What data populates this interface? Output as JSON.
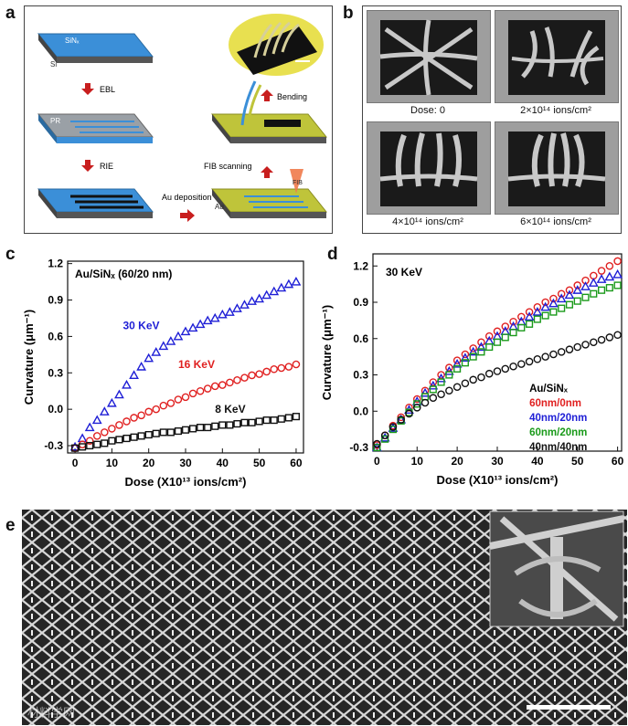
{
  "panels": {
    "a": {
      "letter": "a",
      "labels": {
        "sinx": "SiNₓ",
        "si": "Si",
        "pr": "PR",
        "au": "Au",
        "fib": "FIB",
        "ebl": "EBL",
        "rie": "RIE",
        "au_deposition": "Au deposition",
        "fib_scanning": "FIB scanning",
        "bending": "Bending"
      }
    },
    "b": {
      "letter": "b",
      "tiles": [
        {
          "label": "Dose: 0"
        },
        {
          "label": "2×10¹⁴ ions/cm²"
        },
        {
          "label": "4×10¹⁴ ions/cm²"
        },
        {
          "label": "6×10¹⁴ ions/cm²"
        }
      ]
    },
    "e": {
      "letter": "e",
      "watermark": "材料学网"
    }
  },
  "chart_data": [
    {
      "panel": "c",
      "type": "scatter",
      "title": "Au/SiNₓ (60/20 nm)",
      "xlabel": "Dose (X10¹³ ions/cm²)",
      "ylabel": "Curvature (μm⁻¹)",
      "xlim": [
        -2,
        62
      ],
      "ylim": [
        -0.36,
        1.22
      ],
      "xticks": [
        "0",
        "10",
        "20",
        "30",
        "40",
        "50",
        "60"
      ],
      "yticks": [
        "-0.3",
        "0.0",
        "0.3",
        "0.6",
        "0.9",
        "1.2"
      ],
      "xtick_values": [
        0,
        10,
        20,
        30,
        40,
        50,
        60
      ],
      "ytick_values": [
        -0.3,
        0,
        0.3,
        0.6,
        0.9,
        1.2
      ],
      "series": [
        {
          "name": "30 KeV",
          "color": "#1f1fd6",
          "marker": "triangle",
          "x": [
            0,
            2,
            4,
            6,
            8,
            10,
            12,
            14,
            16,
            18,
            20,
            22,
            24,
            26,
            28,
            30,
            32,
            34,
            36,
            38,
            40,
            42,
            44,
            46,
            48,
            50,
            52,
            54,
            56,
            58,
            60
          ],
          "y": [
            -0.31,
            -0.24,
            -0.15,
            -0.09,
            -0.02,
            0.05,
            0.12,
            0.2,
            0.28,
            0.35,
            0.42,
            0.47,
            0.52,
            0.56,
            0.6,
            0.64,
            0.67,
            0.7,
            0.73,
            0.75,
            0.78,
            0.8,
            0.83,
            0.86,
            0.89,
            0.91,
            0.94,
            0.97,
            1.0,
            1.03,
            1.05
          ]
        },
        {
          "name": "16 KeV",
          "color": "#e02020",
          "marker": "circle",
          "x": [
            0,
            2,
            4,
            6,
            8,
            10,
            12,
            14,
            16,
            18,
            20,
            22,
            24,
            26,
            28,
            30,
            32,
            34,
            36,
            38,
            40,
            42,
            44,
            46,
            48,
            50,
            52,
            54,
            56,
            58,
            60
          ],
          "y": [
            -0.32,
            -0.29,
            -0.26,
            -0.22,
            -0.19,
            -0.16,
            -0.13,
            -0.1,
            -0.07,
            -0.05,
            -0.02,
            0.0,
            0.03,
            0.05,
            0.08,
            0.1,
            0.13,
            0.15,
            0.17,
            0.19,
            0.2,
            0.22,
            0.24,
            0.26,
            0.28,
            0.29,
            0.31,
            0.33,
            0.34,
            0.35,
            0.37
          ]
        },
        {
          "name": "8 KeV",
          "color": "#111111",
          "marker": "square",
          "x": [
            0,
            2,
            4,
            6,
            8,
            10,
            12,
            14,
            16,
            18,
            20,
            22,
            24,
            26,
            28,
            30,
            32,
            34,
            36,
            38,
            40,
            42,
            44,
            46,
            48,
            50,
            52,
            54,
            56,
            58,
            60
          ],
          "y": [
            -0.32,
            -0.31,
            -0.3,
            -0.29,
            -0.28,
            -0.26,
            -0.25,
            -0.24,
            -0.23,
            -0.22,
            -0.21,
            -0.2,
            -0.19,
            -0.19,
            -0.18,
            -0.17,
            -0.16,
            -0.15,
            -0.15,
            -0.14,
            -0.13,
            -0.13,
            -0.12,
            -0.11,
            -0.11,
            -0.1,
            -0.09,
            -0.09,
            -0.08,
            -0.07,
            -0.06
          ]
        }
      ]
    },
    {
      "panel": "d",
      "type": "scatter",
      "title": "30 KeV",
      "xlabel": "Dose (X10¹³ ions/cm²)",
      "ylabel": "Curvature (μm⁻¹)",
      "legend_title": "Au/SiNₓ",
      "xlim": [
        -1,
        61
      ],
      "ylim": [
        -0.33,
        1.3
      ],
      "xticks": [
        "0",
        "10",
        "20",
        "30",
        "40",
        "50",
        "60"
      ],
      "yticks": [
        "-0.3",
        "0.0",
        "0.3",
        "0.6",
        "0.9",
        "1.2"
      ],
      "xtick_values": [
        0,
        10,
        20,
        30,
        40,
        50,
        60
      ],
      "ytick_values": [
        -0.3,
        0,
        0.3,
        0.6,
        0.9,
        1.2
      ],
      "series": [
        {
          "name": "60nm/0nm",
          "color": "#e02020",
          "marker": "circle",
          "x": [
            0,
            2,
            4,
            6,
            8,
            10,
            12,
            14,
            16,
            18,
            20,
            22,
            24,
            26,
            28,
            30,
            32,
            34,
            36,
            38,
            40,
            42,
            44,
            46,
            48,
            50,
            52,
            54,
            56,
            58,
            60
          ],
          "y": [
            -0.28,
            -0.2,
            -0.12,
            -0.05,
            0.03,
            0.1,
            0.17,
            0.24,
            0.3,
            0.36,
            0.42,
            0.47,
            0.52,
            0.57,
            0.62,
            0.66,
            0.7,
            0.74,
            0.78,
            0.82,
            0.86,
            0.9,
            0.93,
            0.97,
            1.0,
            1.04,
            1.08,
            1.12,
            1.16,
            1.2,
            1.24
          ]
        },
        {
          "name": "40nm/20nm",
          "color": "#1f1fd6",
          "marker": "triangle",
          "x": [
            0,
            2,
            4,
            6,
            8,
            10,
            12,
            14,
            16,
            18,
            20,
            22,
            24,
            26,
            28,
            30,
            32,
            34,
            36,
            38,
            40,
            42,
            44,
            46,
            48,
            50,
            52,
            54,
            56,
            58,
            60
          ],
          "y": [
            -0.3,
            -0.22,
            -0.14,
            -0.07,
            0.01,
            0.08,
            0.15,
            0.21,
            0.27,
            0.33,
            0.39,
            0.44,
            0.49,
            0.53,
            0.58,
            0.62,
            0.66,
            0.7,
            0.74,
            0.78,
            0.82,
            0.86,
            0.89,
            0.93,
            0.96,
            1.0,
            1.03,
            1.06,
            1.09,
            1.11,
            1.13
          ]
        },
        {
          "name": "60nm/20nm",
          "color": "#1a9a1a",
          "marker": "square",
          "x": [
            0,
            2,
            4,
            6,
            8,
            10,
            12,
            14,
            16,
            18,
            20,
            22,
            24,
            26,
            28,
            30,
            32,
            34,
            36,
            38,
            40,
            42,
            44,
            46,
            48,
            50,
            52,
            54,
            56,
            58,
            60
          ],
          "y": [
            -0.3,
            -0.23,
            -0.15,
            -0.08,
            -0.01,
            0.06,
            0.12,
            0.18,
            0.24,
            0.3,
            0.35,
            0.4,
            0.45,
            0.49,
            0.53,
            0.57,
            0.61,
            0.65,
            0.69,
            0.72,
            0.76,
            0.79,
            0.82,
            0.85,
            0.88,
            0.91,
            0.94,
            0.97,
            1.0,
            1.02,
            1.04
          ]
        },
        {
          "name": "40nm/40nm",
          "color": "#111111",
          "marker": "circle",
          "x": [
            0,
            2,
            4,
            6,
            8,
            10,
            12,
            14,
            16,
            18,
            20,
            22,
            24,
            26,
            28,
            30,
            32,
            34,
            36,
            38,
            40,
            42,
            44,
            46,
            48,
            50,
            52,
            54,
            56,
            58,
            60
          ],
          "y": [
            -0.27,
            -0.2,
            -0.13,
            -0.07,
            -0.02,
            0.03,
            0.07,
            0.11,
            0.14,
            0.17,
            0.2,
            0.23,
            0.26,
            0.28,
            0.31,
            0.33,
            0.35,
            0.37,
            0.39,
            0.41,
            0.43,
            0.45,
            0.47,
            0.49,
            0.51,
            0.53,
            0.55,
            0.57,
            0.59,
            0.61,
            0.63
          ]
        }
      ]
    }
  ]
}
